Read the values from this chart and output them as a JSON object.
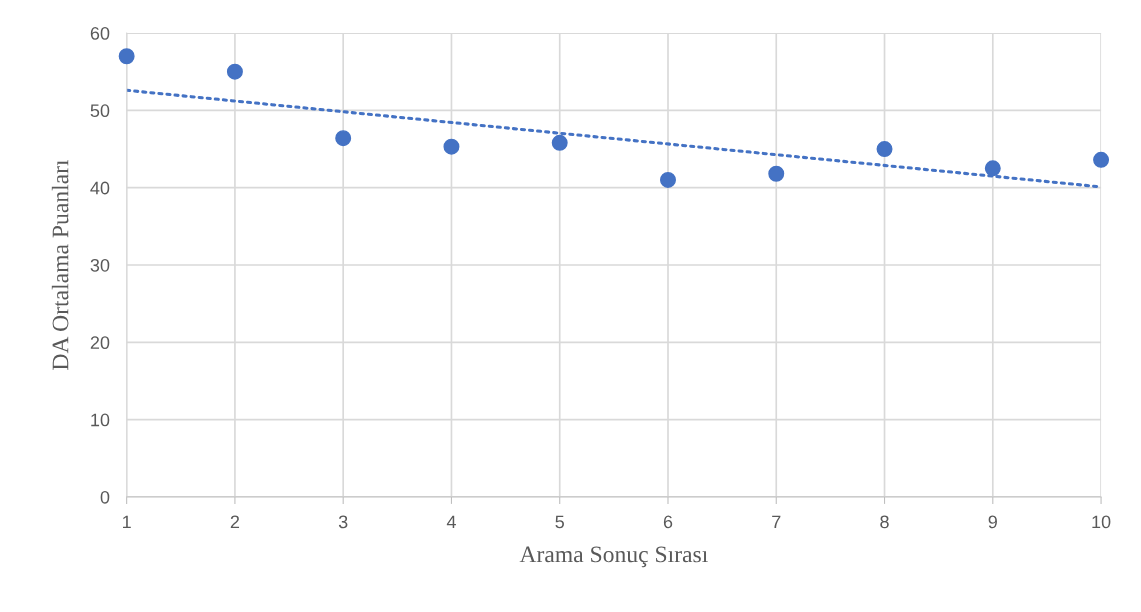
{
  "chart_data": {
    "type": "scatter",
    "xlabel": "Arama Sonuç Sırası",
    "ylabel": "DA Ortalama Puanları",
    "x": [
      1,
      2,
      3,
      4,
      5,
      6,
      7,
      8,
      9,
      10
    ],
    "series": [
      {
        "color": "#4472c4",
        "marker": "circle",
        "values": [
          57.0,
          55.0,
          46.4,
          45.3,
          45.8,
          41.0,
          41.8,
          45.0,
          42.5,
          43.6
        ]
      },
      {
        "type": "line",
        "color": "#4472c4",
        "line_style": "dotted",
        "x": [
          1,
          10
        ],
        "values": [
          52.6,
          40.1
        ]
      }
    ],
    "xlim": [
      1,
      10
    ],
    "xticks": [
      1,
      2,
      3,
      4,
      5,
      6,
      7,
      8,
      9,
      10
    ],
    "ylim": [
      0,
      60
    ],
    "yticks": [
      0,
      10,
      20,
      30,
      40,
      50,
      60
    ],
    "grid": true,
    "legend": false
  }
}
